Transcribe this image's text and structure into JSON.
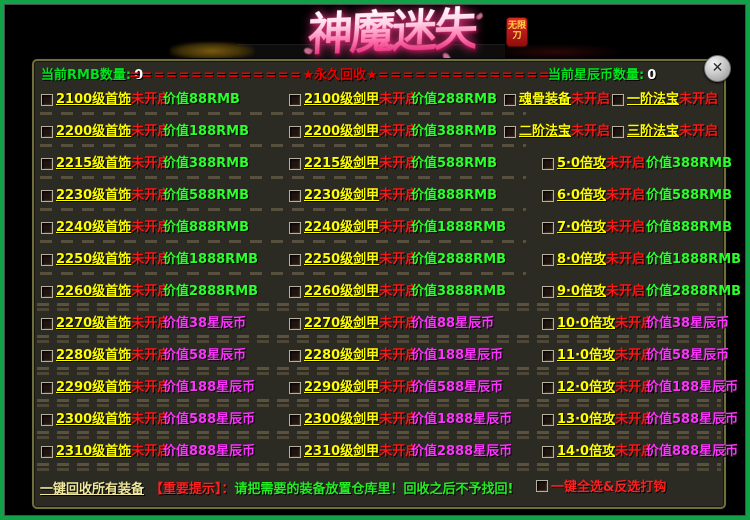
{
  "logo": {
    "title": "神魔迷失",
    "badge": "无限刀"
  },
  "header": {
    "rmb_label": "当前RMB数量:",
    "rmb_value": "0",
    "dashes_left": "==============",
    "banner_title": "★永久回收★",
    "dashes_right": "==============",
    "star_label": "当前星辰币数量:",
    "star_value": "0"
  },
  "window_controls": {
    "close": "✕"
  },
  "items": {
    "value_label": "价值",
    "status": "未开启",
    "bands": [
      {
        "col1": {
          "name": "2100级首饰",
          "value": "88RMB",
          "currency": "rmb"
        },
        "col2": {
          "name": "2100级剑甲",
          "value": "288RMB",
          "currency": "rmb"
        },
        "col3": {
          "pair": [
            {
              "name": "魂骨装备"
            },
            {
              "name": "一阶法宝"
            }
          ]
        },
        "separator": "single"
      },
      {
        "col1": {
          "name": "2200级首饰",
          "value": "188RMB",
          "currency": "rmb"
        },
        "col2": {
          "name": "2200级剑甲",
          "value": "388RMB",
          "currency": "rmb"
        },
        "col3": {
          "pair": [
            {
              "name": "二阶法宝"
            },
            {
              "name": "三阶法宝"
            }
          ]
        },
        "separator": "single"
      },
      {
        "col1": {
          "name": "2215级首饰",
          "value": "388RMB",
          "currency": "rmb"
        },
        "col2": {
          "name": "2215级剑甲",
          "value": "588RMB",
          "currency": "rmb"
        },
        "col3": {
          "name": "5·0倍攻",
          "value": "388RMB",
          "currency": "rmb"
        },
        "separator": "single"
      },
      {
        "col1": {
          "name": "2230级首饰",
          "value": "588RMB",
          "currency": "rmb"
        },
        "col2": {
          "name": "2230级剑甲",
          "value": "888RMB",
          "currency": "rmb"
        },
        "col3": {
          "name": "6·0倍攻",
          "value": "588RMB",
          "currency": "rmb"
        },
        "separator": "single"
      },
      {
        "col1": {
          "name": "2240级首饰",
          "value": "888RMB",
          "currency": "rmb"
        },
        "col2": {
          "name": "2240级剑甲",
          "value": "1888RMB",
          "currency": "rmb"
        },
        "col3": {
          "name": "7·0倍攻",
          "value": "888RMB",
          "currency": "rmb"
        },
        "separator": "single"
      },
      {
        "col1": {
          "name": "2250级首饰",
          "value": "1888RMB",
          "currency": "rmb"
        },
        "col2": {
          "name": "2250级剑甲",
          "value": "2888RMB",
          "currency": "rmb"
        },
        "col3": {
          "name": "8·0倍攻",
          "value": "1888RMB",
          "currency": "rmb"
        },
        "separator": "single"
      },
      {
        "col1": {
          "name": "2260级首饰",
          "value": "2888RMB",
          "currency": "rmb"
        },
        "col2": {
          "name": "2260级剑甲",
          "value": "3888RMB",
          "currency": "rmb"
        },
        "col3": {
          "name": "9·0倍攻",
          "value": "2888RMB",
          "currency": "rmb"
        },
        "separator": "double"
      },
      {
        "col1": {
          "name": "2270级首饰",
          "value": "38星辰币",
          "currency": "star"
        },
        "col2": {
          "name": "2270级剑甲",
          "value": "88星辰币",
          "currency": "star"
        },
        "col3": {
          "name": "10·0倍攻",
          "value": "38星辰币",
          "currency": "star"
        },
        "separator": "double"
      },
      {
        "col1": {
          "name": "2280级首饰",
          "value": "58星辰币",
          "currency": "star"
        },
        "col2": {
          "name": "2280级剑甲",
          "value": "188星辰币",
          "currency": "star"
        },
        "col3": {
          "name": "11·0倍攻",
          "value": "58星辰币",
          "currency": "star"
        },
        "separator": "double"
      },
      {
        "col1": {
          "name": "2290级首饰",
          "value": "188星辰币",
          "currency": "star"
        },
        "col2": {
          "name": "2290级剑甲",
          "value": "588星辰币",
          "currency": "star"
        },
        "col3": {
          "name": "12·0倍攻",
          "value": "188星辰币",
          "currency": "star"
        },
        "separator": "double"
      },
      {
        "col1": {
          "name": "2300级首饰",
          "value": "588星辰币",
          "currency": "star"
        },
        "col2": {
          "name": "2300级剑甲",
          "value": "1888星辰币",
          "currency": "star"
        },
        "col3": {
          "name": "13·0倍攻",
          "value": "588星辰币",
          "currency": "star"
        },
        "separator": "double"
      },
      {
        "col1": {
          "name": "2310级首饰",
          "value": "888星辰币",
          "currency": "star"
        },
        "col2": {
          "name": "2310级剑甲",
          "value": "2888星辰币",
          "currency": "star"
        },
        "col3": {
          "name": "14·0倍攻",
          "value": "888星辰币",
          "currency": "star"
        },
        "separator": "double"
      }
    ]
  },
  "footer": {
    "recycle_all_label": "一键回收所有装备",
    "notice_label": "【重要提示】：",
    "notice_text": "请把需要的装备放置仓库里！回收之后不予找回!",
    "select_all_label": "一键全选&反选打钩"
  }
}
